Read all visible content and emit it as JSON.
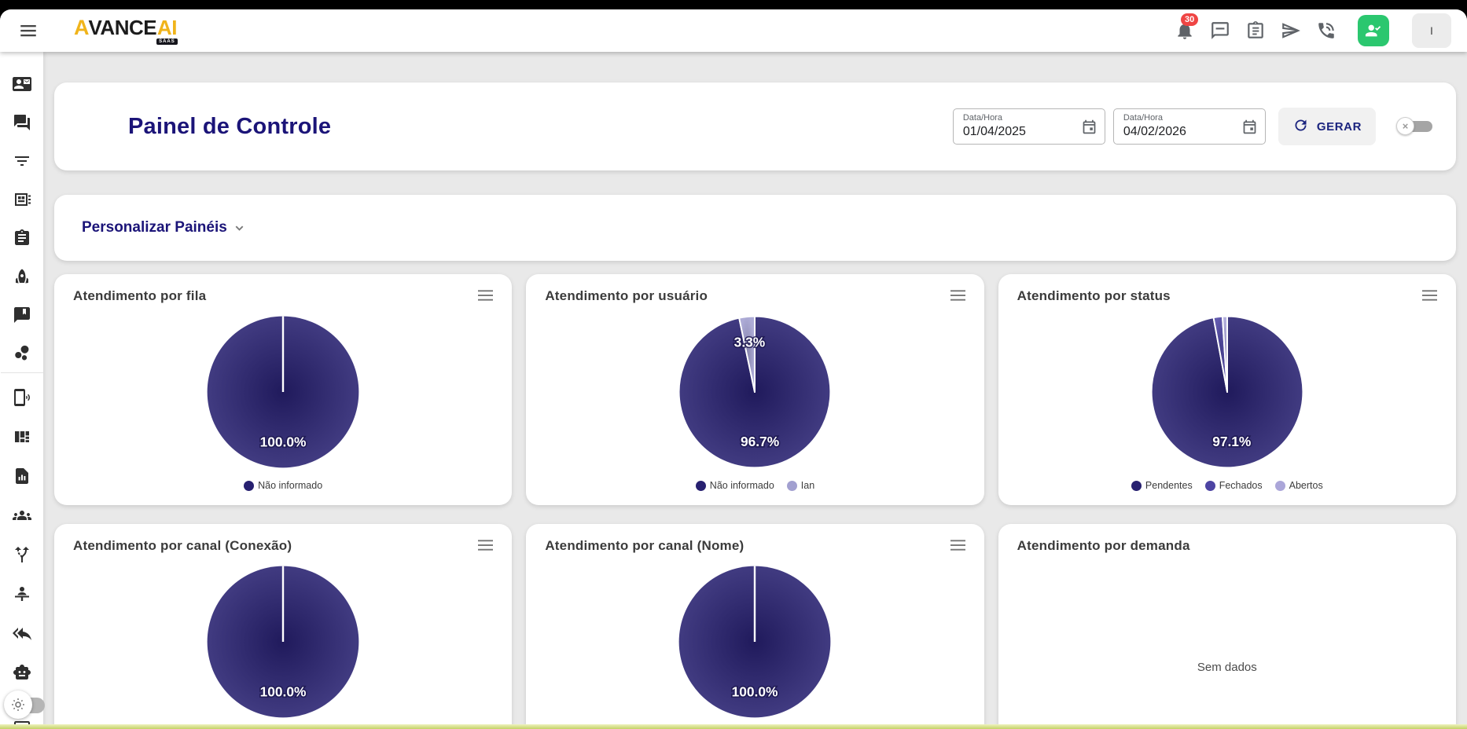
{
  "topbar": {
    "brand": {
      "prefix": "A",
      "middle": "VANCE",
      "suffix": "AI",
      "badge": "SAAS"
    },
    "notifications_badge": "30",
    "profile_initial": "I",
    "icons": [
      "menu",
      "notifications-bell",
      "chat",
      "clipboard-list",
      "send",
      "phone-in-talk",
      "person-check",
      "profile"
    ]
  },
  "sidebar": {
    "icons": [
      "contact-card",
      "chats",
      "filter",
      "grid-panel",
      "tasks-clipboard",
      "rocket",
      "comment-bookmark",
      "bubble-chart",
      "mobile-broadcast",
      "board-columns",
      "report-file",
      "groups",
      "split-arrows",
      "support-agent",
      "reply-all",
      "robot",
      "theme-toggle",
      "screen-share"
    ]
  },
  "header": {
    "title": "Painel de Controle",
    "date_from": {
      "label": "Data/Hora",
      "value": "01/04/2025"
    },
    "date_to": {
      "label": "Data/Hora",
      "value": "04/02/2026"
    },
    "generate_button": "GERAR"
  },
  "personalize": {
    "label": "Personalizar Painéis"
  },
  "chart_data": [
    {
      "type": "pie",
      "title": "Atendimento por fila",
      "labels": [
        "Não informado"
      ],
      "values": [
        100.0
      ],
      "colors": [
        "#272070"
      ],
      "legend_position": "bottom"
    },
    {
      "type": "pie",
      "title": "Atendimento por usuário",
      "labels": [
        "Não informado",
        "Ian"
      ],
      "values": [
        96.7,
        3.3
      ],
      "colors": [
        "#272070",
        "#a2a0d0"
      ],
      "legend_position": "bottom"
    },
    {
      "type": "pie",
      "title": "Atendimento por status",
      "labels": [
        "Pendentes",
        "Fechados",
        "Abertos"
      ],
      "values": [
        97.1,
        1.9,
        1.0
      ],
      "colors": [
        "#272070",
        "#4d44a3",
        "#aba6d9"
      ],
      "legend_position": "bottom"
    },
    {
      "type": "pie",
      "title": "Atendimento por canal (Conexão)",
      "labels": [],
      "values": [
        100.0
      ],
      "colors": [
        "#272070"
      ]
    },
    {
      "type": "pie",
      "title": "Atendimento por canal (Nome)",
      "labels": [],
      "values": [
        100.0
      ],
      "colors": [
        "#272070"
      ]
    },
    {
      "type": "pie",
      "title": "Atendimento por demanda",
      "labels": [],
      "values": [],
      "colors": [],
      "no_data": "Sem dados"
    }
  ],
  "colors": {
    "accent": "#1b1478",
    "pie_navy": "#272070",
    "pie_medium": "#4d44a3",
    "pie_light": "#aba6d9",
    "pie_lavender": "#a2a0d0",
    "green_button": "#2bc76f",
    "badge_red": "#ef4544",
    "bottom_bar": "#ccd97a"
  }
}
